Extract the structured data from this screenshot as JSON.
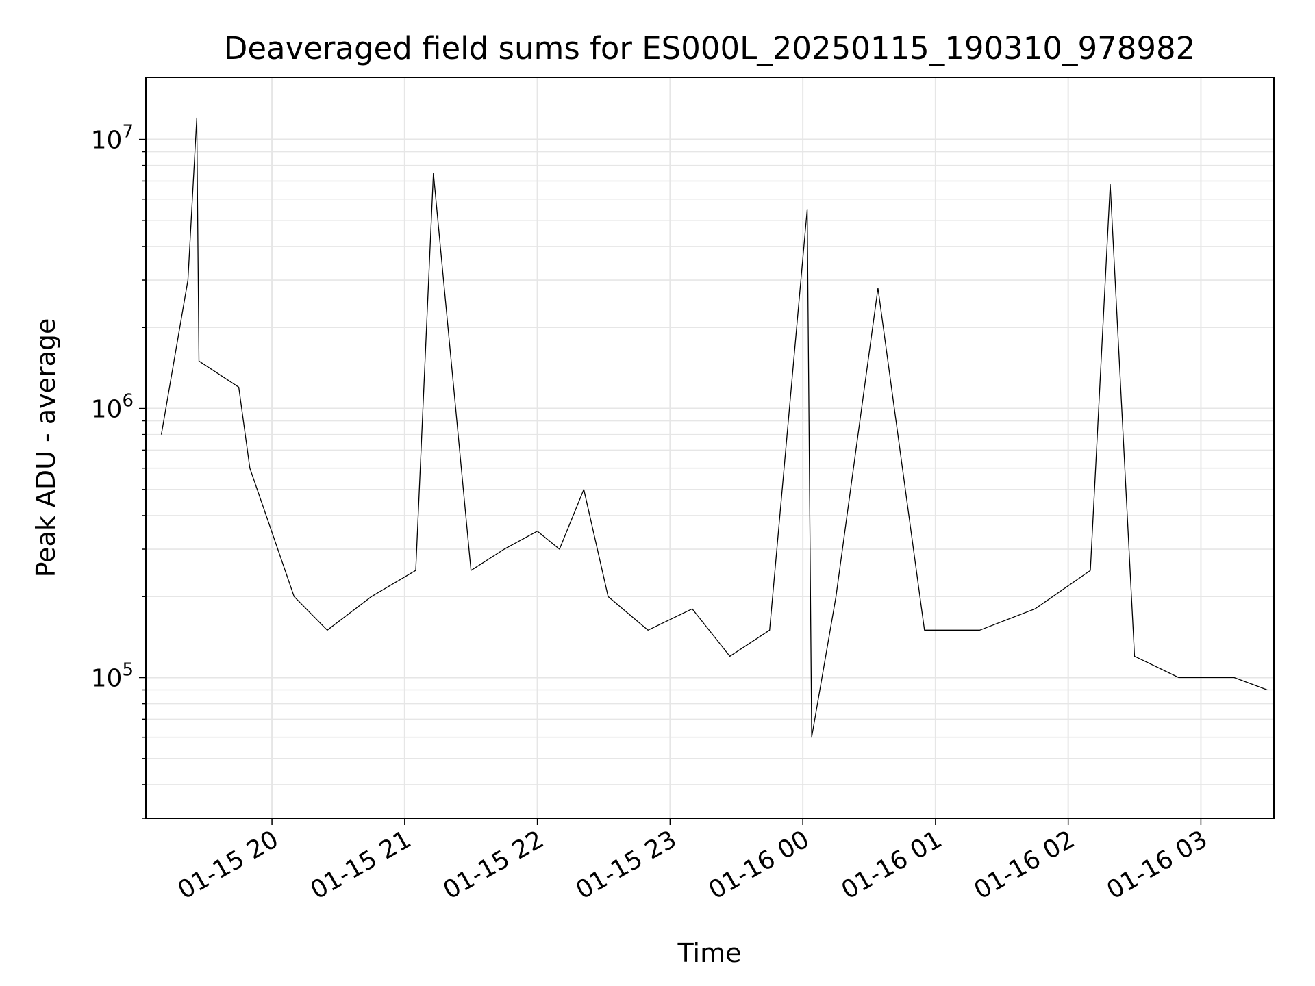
{
  "chart_data": {
    "type": "line",
    "title": "Deaveraged field sums for ES000L_20250115_190310_978982",
    "xlabel": "Time",
    "ylabel": "Peak ADU - average",
    "yscale": "log",
    "ylim": [
      30000,
      17000000
    ],
    "xlim": [
      "2025-01-15 19:03",
      "2025-01-16 03:33"
    ],
    "grid": true,
    "line_color": "#000000",
    "grid_color": "#e6e6e6",
    "x_ticks": [
      {
        "value": "2025-01-15 20:00",
        "label": "01-15 20"
      },
      {
        "value": "2025-01-15 21:00",
        "label": "01-15 21"
      },
      {
        "value": "2025-01-15 22:00",
        "label": "01-15 22"
      },
      {
        "value": "2025-01-15 23:00",
        "label": "01-15 23"
      },
      {
        "value": "2025-01-16 00:00",
        "label": "01-16 00"
      },
      {
        "value": "2025-01-16 01:00",
        "label": "01-16 01"
      },
      {
        "value": "2025-01-16 02:00",
        "label": "01-16 02"
      },
      {
        "value": "2025-01-16 03:00",
        "label": "01-16 03"
      }
    ],
    "y_ticks": [
      {
        "value": 100000,
        "base": "10",
        "exp": "5"
      },
      {
        "value": 1000000,
        "base": "10",
        "exp": "6"
      },
      {
        "value": 10000000,
        "base": "10",
        "exp": "7"
      }
    ],
    "series": [
      {
        "x": [
          "2025-01-15 19:10",
          "2025-01-15 19:22",
          "2025-01-15 19:26",
          "2025-01-15 19:27",
          "2025-01-15 19:45",
          "2025-01-15 19:50",
          "2025-01-15 20:10",
          "2025-01-15 20:25",
          "2025-01-15 20:45",
          "2025-01-15 21:05",
          "2025-01-15 21:13",
          "2025-01-15 21:30",
          "2025-01-15 21:45",
          "2025-01-15 22:00",
          "2025-01-15 22:10",
          "2025-01-15 22:21",
          "2025-01-15 22:32",
          "2025-01-15 22:50",
          "2025-01-15 23:10",
          "2025-01-15 23:27",
          "2025-01-15 23:45",
          "2025-01-16 00:02",
          "2025-01-16 00:04",
          "2025-01-16 00:15",
          "2025-01-16 00:34",
          "2025-01-16 00:55",
          "2025-01-16 01:20",
          "2025-01-16 01:45",
          "2025-01-16 02:10",
          "2025-01-16 02:19",
          "2025-01-16 02:30",
          "2025-01-16 02:50",
          "2025-01-16 03:15",
          "2025-01-16 03:30"
        ],
        "y": [
          800000,
          3000000,
          12000000,
          1500000,
          1200000,
          600000,
          200000,
          150000,
          200000,
          250000,
          7500000,
          250000,
          300000,
          350000,
          300000,
          500000,
          200000,
          150000,
          180000,
          120000,
          150000,
          5500000,
          60000,
          200000,
          2800000,
          150000,
          150000,
          180000,
          250000,
          6800000,
          120000,
          100000,
          100000,
          90000
        ]
      }
    ]
  }
}
